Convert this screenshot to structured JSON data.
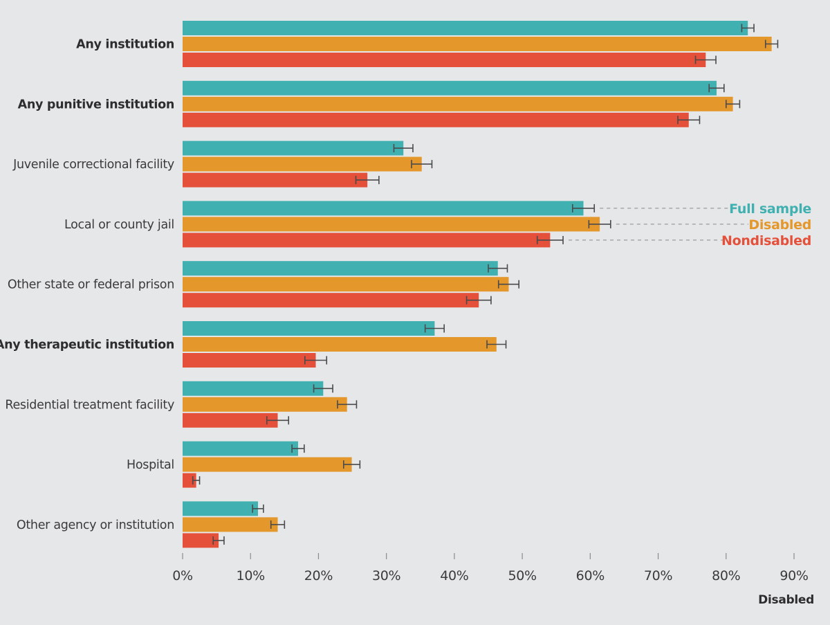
{
  "chart_data": {
    "type": "bar",
    "orientation": "horizontal",
    "categories": [
      "Any institution",
      "Any punitive institution",
      "Juvenile correctional facility",
      "Local or county jail",
      "Other state or federal prison",
      "Any therapeutic institution",
      "Residential treatment facility",
      "Hospital",
      "Other agency or institution"
    ],
    "bold_categories": [
      "Any institution",
      "Any punitive institution",
      "Any therapeutic institution"
    ],
    "series": [
      {
        "name": "Full sample",
        "color": "#41b0b0",
        "values": [
          83.2,
          78.6,
          32.5,
          59.0,
          46.4,
          37.1,
          20.7,
          17.0,
          11.1
        ],
        "errors": [
          0.9,
          1.1,
          1.4,
          1.6,
          1.4,
          1.4,
          1.4,
          0.9,
          0.8
        ]
      },
      {
        "name": "Disabled",
        "color": "#e4972b",
        "values": [
          86.7,
          81.0,
          35.2,
          61.4,
          48.0,
          46.2,
          24.2,
          24.9,
          14.0
        ],
        "errors": [
          0.9,
          1.0,
          1.5,
          1.6,
          1.5,
          1.4,
          1.4,
          1.2,
          1.0
        ]
      },
      {
        "name": "Nondisabled",
        "color": "#e5503a",
        "values": [
          77.0,
          74.5,
          27.2,
          54.1,
          43.6,
          19.6,
          14.0,
          2.0,
          5.3
        ],
        "errors": [
          1.5,
          1.6,
          1.7,
          1.9,
          1.8,
          1.6,
          1.6,
          0.5,
          0.8
        ]
      }
    ],
    "xlim": [
      0,
      90
    ],
    "x_ticks": [
      "0%",
      "10%",
      "20%",
      "30%",
      "40%",
      "50%",
      "60%",
      "70%",
      "80%",
      "90%"
    ],
    "x_tick_values": [
      0,
      10,
      20,
      30,
      40,
      50,
      60,
      70,
      80,
      90
    ],
    "xlabel": "Disabled",
    "legend_placement": "inline-right",
    "grid": false
  }
}
